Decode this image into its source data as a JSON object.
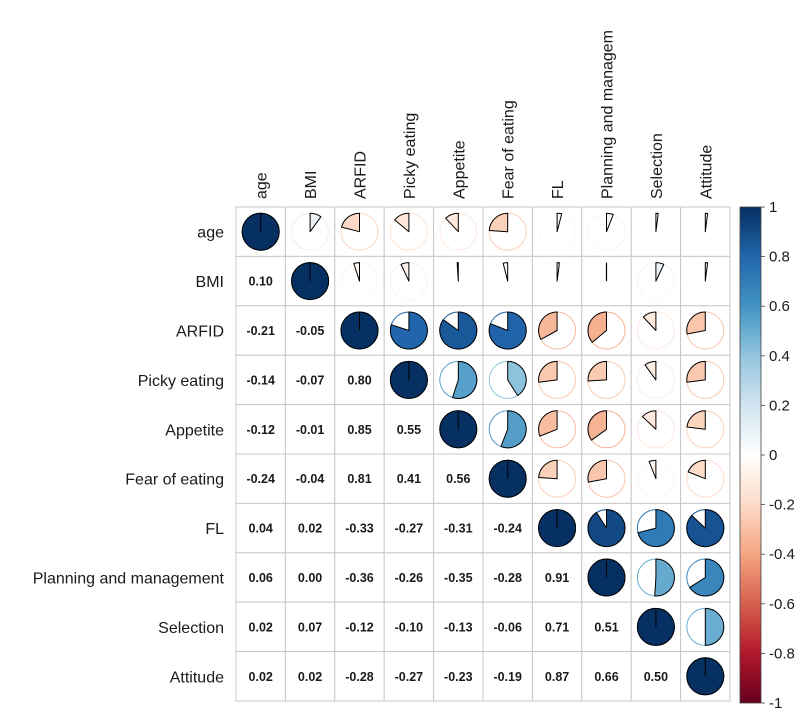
{
  "chart_data": {
    "type": "correlation-matrix",
    "upper_method": "pie",
    "lower_method": "number",
    "variables": [
      "age",
      "BMI",
      "ARFID",
      "Picky eating",
      "Appetite",
      "Fear of eating",
      "FL",
      "Planning and management",
      "Selection",
      "Attitude"
    ],
    "column_labels": [
      "age",
      "BMI",
      "ARFID",
      "Picky eating",
      "Appetite",
      "Fear of eating",
      "FL",
      "Planning and managem",
      "Selection",
      "Attitude"
    ],
    "matrix": [
      [
        1.0,
        0.1,
        -0.21,
        -0.14,
        -0.12,
        -0.24,
        0.04,
        0.06,
        0.02,
        0.02
      ],
      [
        0.1,
        1.0,
        -0.05,
        -0.07,
        -0.01,
        -0.04,
        0.02,
        0.0,
        0.07,
        0.02
      ],
      [
        -0.21,
        -0.05,
        1.0,
        0.8,
        0.85,
        0.81,
        -0.33,
        -0.36,
        -0.12,
        -0.28
      ],
      [
        -0.14,
        -0.07,
        0.8,
        1.0,
        0.55,
        0.41,
        -0.27,
        -0.26,
        -0.1,
        -0.27
      ],
      [
        -0.12,
        -0.01,
        0.85,
        0.55,
        1.0,
        0.56,
        -0.31,
        -0.35,
        -0.13,
        -0.23
      ],
      [
        -0.24,
        -0.04,
        0.81,
        0.41,
        0.56,
        1.0,
        -0.24,
        -0.28,
        -0.06,
        -0.19
      ],
      [
        0.04,
        0.02,
        -0.33,
        -0.27,
        -0.31,
        -0.24,
        1.0,
        0.91,
        0.71,
        0.87
      ],
      [
        0.06,
        0.0,
        -0.36,
        -0.26,
        -0.35,
        -0.28,
        0.91,
        1.0,
        0.51,
        0.66
      ],
      [
        0.02,
        0.07,
        -0.12,
        -0.1,
        -0.13,
        -0.06,
        0.71,
        0.51,
        1.0,
        0.5
      ],
      [
        0.02,
        0.02,
        -0.28,
        -0.27,
        -0.23,
        -0.19,
        0.87,
        0.66,
        0.5,
        1.0
      ]
    ],
    "number_labels": [
      [
        "",
        "",
        "",
        "",
        "",
        "",
        "",
        "",
        "",
        ""
      ],
      [
        "0.10",
        "",
        "",
        "",
        "",
        "",
        "",
        "",
        "",
        ""
      ],
      [
        "-0.21",
        "-0.05",
        "",
        "",
        "",
        "",
        "",
        "",
        "",
        ""
      ],
      [
        "-0.14",
        "-0.07",
        "0.80",
        "",
        "",
        "",
        "",
        "",
        "",
        ""
      ],
      [
        "-0.12",
        "-0.01",
        "0.85",
        "0.55",
        "",
        "",
        "",
        "",
        "",
        ""
      ],
      [
        "-0.24",
        "-0.04",
        "0.81",
        "0.41",
        "0.56",
        "",
        "",
        "",
        "",
        ""
      ],
      [
        "0.04",
        "0.02",
        "-0.33",
        "-0.27",
        "-0.31",
        "-0.24",
        "",
        "",
        "",
        ""
      ],
      [
        "0.06",
        "0.00",
        "-0.36",
        "-0.26",
        "-0.35",
        "-0.28",
        "0.91",
        "",
        "",
        ""
      ],
      [
        "0.02",
        "0.07",
        "-0.12",
        "-0.10",
        "-0.13",
        "-0.06",
        "0.71",
        "0.51",
        "",
        ""
      ],
      [
        "0.02",
        "0.02",
        "-0.28",
        "-0.27",
        "-0.23",
        "-0.19",
        "0.87",
        "0.66",
        "0.50",
        ""
      ]
    ],
    "colorbar": {
      "range": [
        -1,
        1
      ],
      "tick_labels": [
        "1",
        "0.8",
        "0.6",
        "0.4",
        "0.2",
        "0",
        "-0.2",
        "-0.4",
        "-0.6",
        "-0.8",
        "-1"
      ],
      "color_stops": [
        {
          "v": -1.0,
          "c": "#67001f"
        },
        {
          "v": -0.8,
          "c": "#b2182b"
        },
        {
          "v": -0.6,
          "c": "#d6604d"
        },
        {
          "v": -0.4,
          "c": "#f4a582"
        },
        {
          "v": -0.2,
          "c": "#fddbc7"
        },
        {
          "v": 0.0,
          "c": "#ffffff"
        },
        {
          "v": 0.2,
          "c": "#d1e5f0"
        },
        {
          "v": 0.4,
          "c": "#92c5de"
        },
        {
          "v": 0.6,
          "c": "#4393c3"
        },
        {
          "v": 0.8,
          "c": "#2166ac"
        },
        {
          "v": 1.0,
          "c": "#053061"
        }
      ]
    },
    "grid": true,
    "legend": "right"
  }
}
